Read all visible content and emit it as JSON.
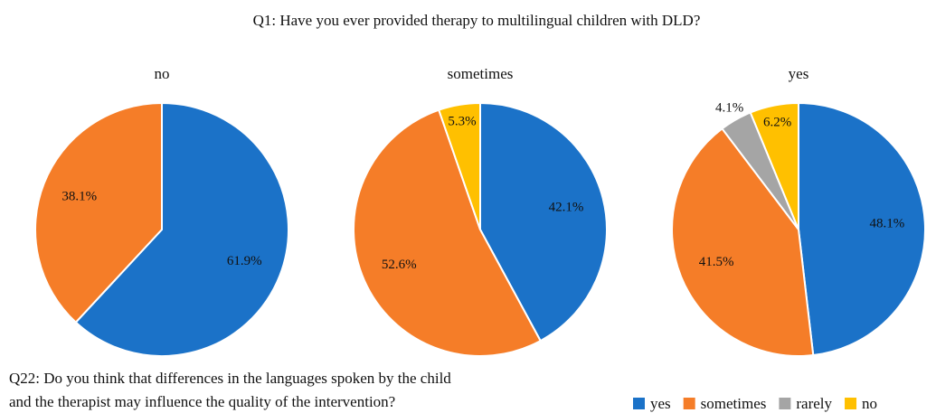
{
  "title": "Q1: Have you ever provided therapy to multilingual children with DLD?",
  "chart_data": [
    {
      "type": "pie",
      "title": "no",
      "categories": [
        "yes",
        "sometimes"
      ],
      "values": [
        61.9,
        38.1
      ],
      "value_labels": [
        "61.9%",
        "38.1%"
      ],
      "colors": [
        "#1b72c8",
        "#f57d28"
      ]
    },
    {
      "type": "pie",
      "title": "sometimes",
      "categories": [
        "yes",
        "sometimes",
        "no"
      ],
      "values": [
        42.1,
        52.6,
        5.3
      ],
      "value_labels": [
        "42.1%",
        "52.6%",
        "5.3%"
      ],
      "colors": [
        "#1b72c8",
        "#f57d28",
        "#ffc000"
      ]
    },
    {
      "type": "pie",
      "title": "yes",
      "categories": [
        "yes",
        "sometimes",
        "rarely",
        "no"
      ],
      "values": [
        48.1,
        41.5,
        4.1,
        6.2
      ],
      "value_labels": [
        "48.1%",
        "41.5%",
        "4.1%",
        "6.2%"
      ],
      "colors": [
        "#1b72c8",
        "#f57d28",
        "#a5a5a5",
        "#ffc000"
      ]
    }
  ],
  "caption": [
    "Q22: Do you think that differences in the languages spoken by the child",
    "and the therapist may influence the quality of the intervention?"
  ],
  "legend": [
    {
      "name": "yes",
      "color": "#1b72c8"
    },
    {
      "name": "sometimes",
      "color": "#f57d28"
    },
    {
      "name": "rarely",
      "color": "#a5a5a5"
    },
    {
      "name": "no",
      "color": "#ffc000"
    }
  ]
}
